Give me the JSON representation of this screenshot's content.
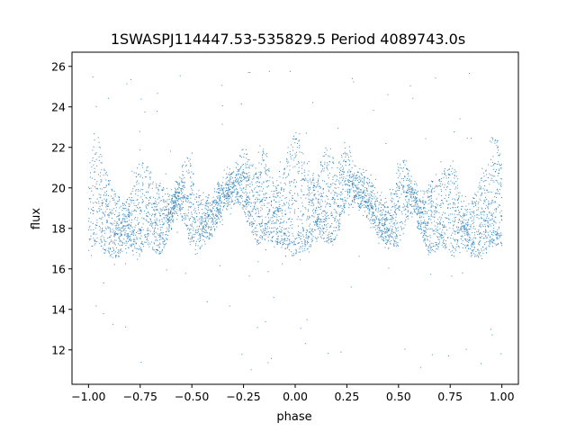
{
  "chart_data": {
    "type": "scatter",
    "title": "1SWASPJ114447.53-535829.5 Period 4089743.0s",
    "xlabel": "phase",
    "ylabel": "flux",
    "xlim": [
      -1.08,
      1.08
    ],
    "ylim": [
      10.3,
      26.7
    ],
    "xticks": [
      -1.0,
      -0.75,
      -0.5,
      -0.25,
      0.0,
      0.25,
      0.5,
      0.75,
      1.0
    ],
    "xtick_labels": [
      "−1.00",
      "−0.75",
      "−0.50",
      "−0.25",
      "0.00",
      "0.25",
      "0.50",
      "0.75",
      "1.00"
    ],
    "yticks": [
      12,
      14,
      16,
      18,
      20,
      22,
      24,
      26
    ],
    "ytick_labels": [
      "12",
      "14",
      "16",
      "18",
      "20",
      "22",
      "24",
      "26"
    ],
    "grid": false,
    "legend": "none",
    "point_color": "#1f77b4",
    "series": [
      {
        "x_range": [
          -1.0,
          1.0
        ],
        "symmetric_about_phase": 0.0,
        "profile": {
          "phase": [
            0.0,
            0.03,
            0.05,
            0.08,
            0.1,
            0.13,
            0.15,
            0.18,
            0.2,
            0.23,
            0.25,
            0.28,
            0.3,
            0.33,
            0.35,
            0.38,
            0.4,
            0.43,
            0.45,
            0.48,
            0.5,
            0.53,
            0.55,
            0.58,
            0.6,
            0.63,
            0.65,
            0.68,
            0.7,
            0.73,
            0.75,
            0.78,
            0.8,
            0.83,
            0.85,
            0.88,
            0.9,
            0.93,
            0.95,
            0.98,
            1.0
          ],
          "flux_low": [
            16.5,
            16.8,
            16.9,
            17.1,
            17.3,
            17.4,
            17.3,
            17.2,
            17.6,
            18.2,
            18.8,
            19.2,
            19.1,
            18.9,
            18.5,
            18.0,
            17.6,
            17.3,
            17.0,
            16.9,
            17.1,
            17.8,
            18.6,
            18.8,
            17.9,
            17.1,
            16.7,
            16.8,
            17.1,
            16.9,
            16.6,
            16.8,
            17.1,
            16.9,
            16.6,
            16.5,
            16.6,
            16.8,
            17.3,
            17.1,
            16.7
          ],
          "flux_high": [
            22.8,
            22.2,
            21.5,
            20.8,
            20.3,
            21.6,
            22.0,
            21.4,
            20.9,
            21.8,
            22.1,
            21.5,
            20.9,
            20.7,
            20.5,
            20.2,
            19.8,
            19.6,
            19.4,
            20.2,
            21.2,
            21.6,
            21.0,
            20.0,
            19.6,
            19.8,
            20.4,
            20.3,
            20.9,
            21.4,
            21.2,
            20.8,
            19.6,
            19.2,
            19.5,
            20.0,
            20.6,
            21.1,
            22.6,
            22.3,
            20.8
          ],
          "flux_typical": [
            19.5,
            19.2,
            19.0,
            19.0,
            18.8,
            19.4,
            19.7,
            19.4,
            19.2,
            20.0,
            20.4,
            20.3,
            20.0,
            19.8,
            19.5,
            19.1,
            18.7,
            18.5,
            18.2,
            18.6,
            19.1,
            19.7,
            19.8,
            19.4,
            18.8,
            18.5,
            18.6,
            18.5,
            18.9,
            19.1,
            18.9,
            18.8,
            18.4,
            18.1,
            18.0,
            18.2,
            18.6,
            19.0,
            19.9,
            19.7,
            18.7
          ]
        },
        "outlier_range": [
          11.0,
          26.0
        ]
      }
    ]
  }
}
